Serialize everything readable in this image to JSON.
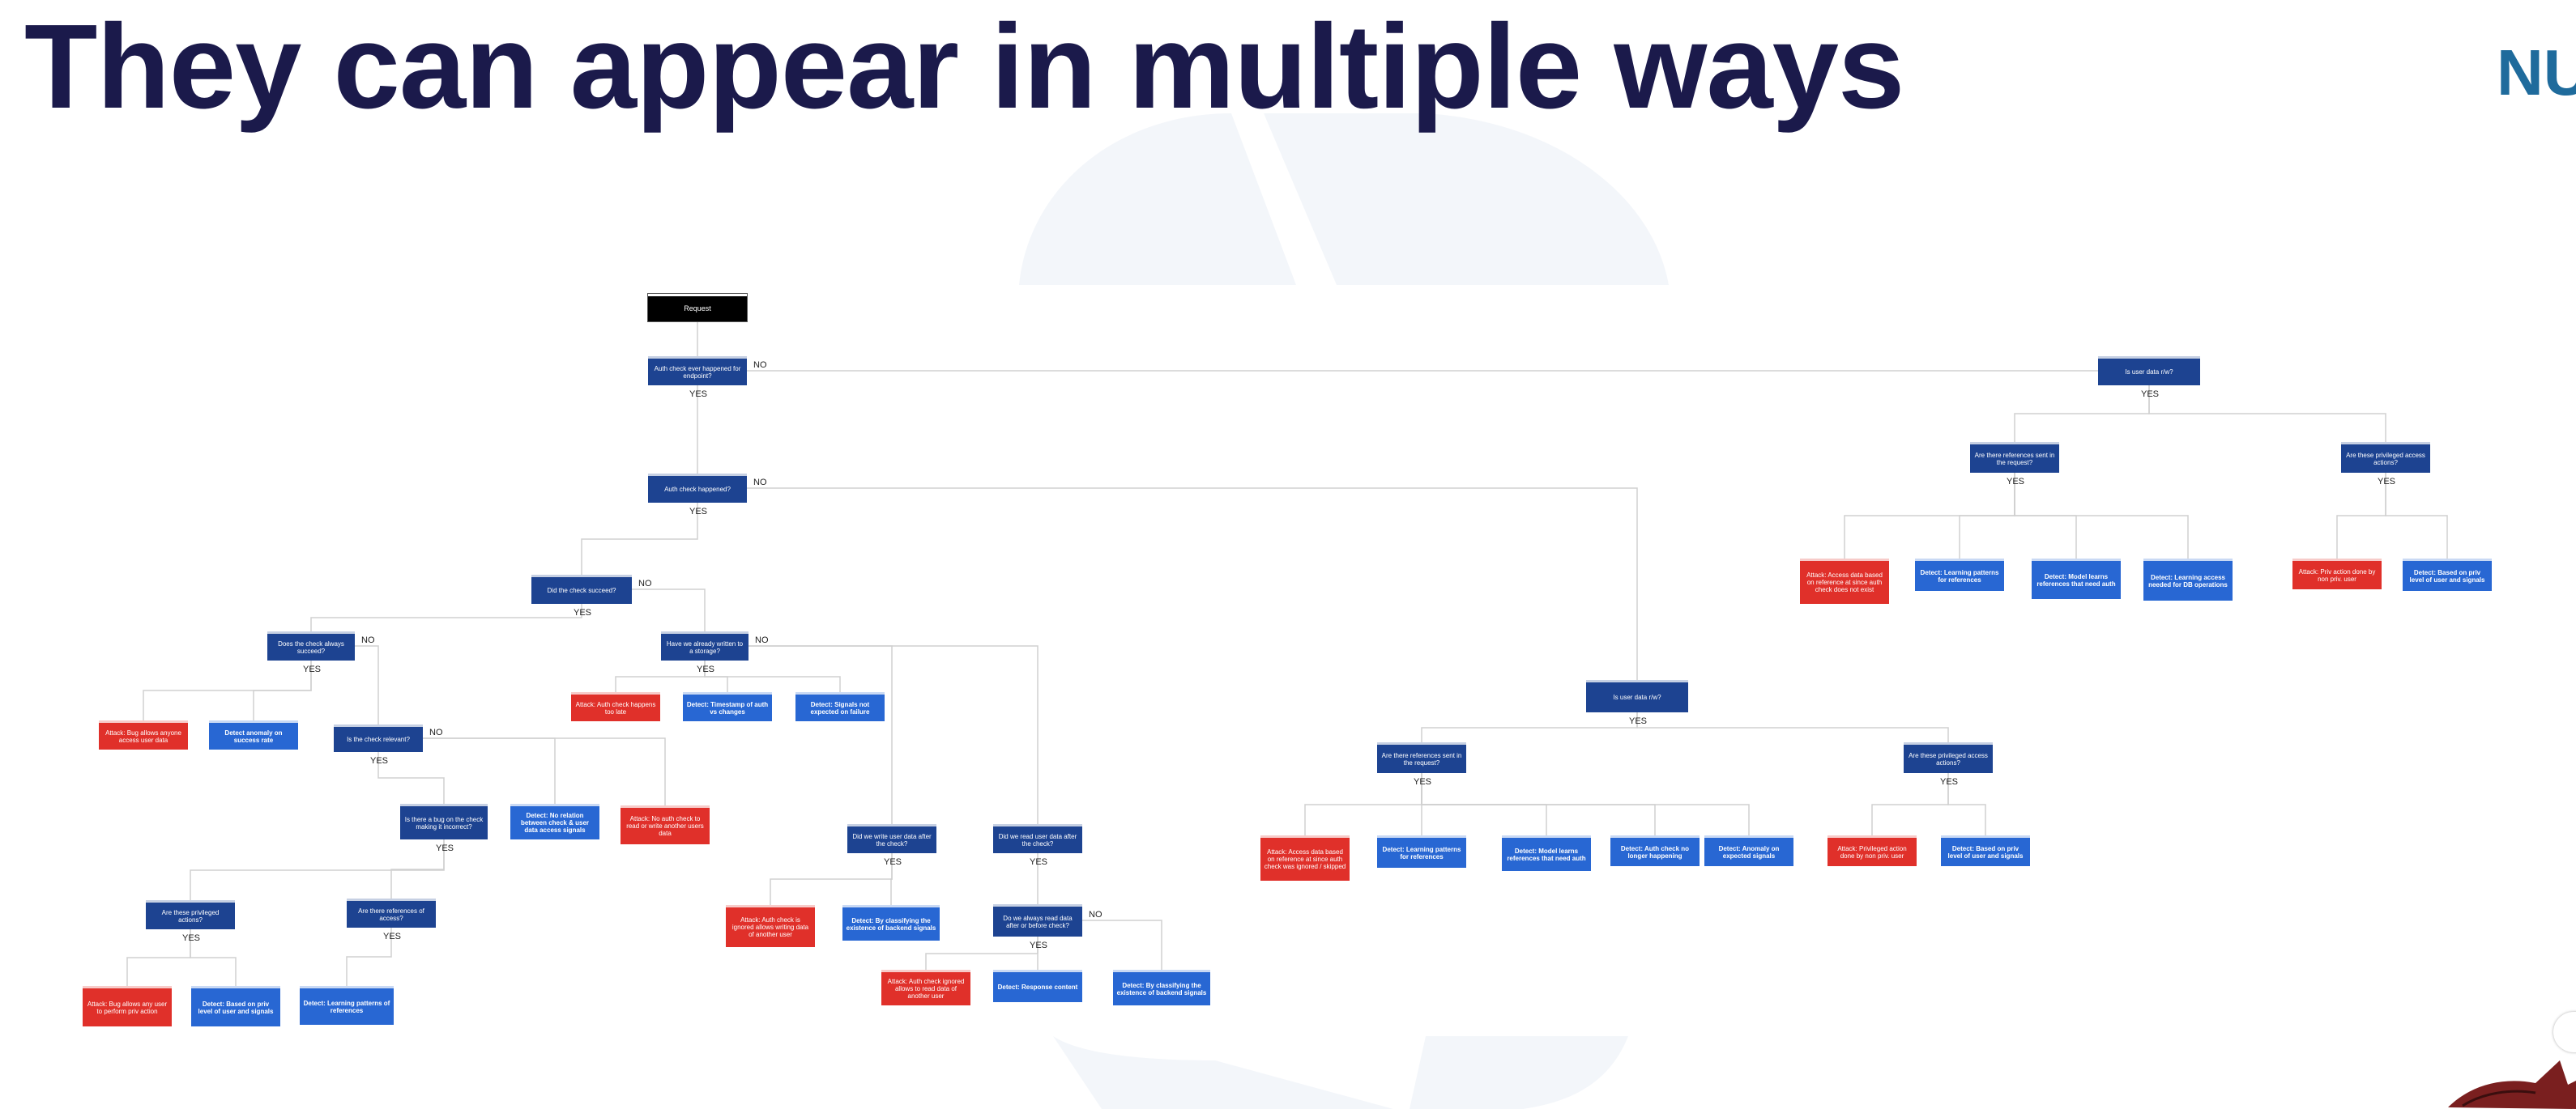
{
  "slide": {
    "title": "They can appear in multiple ways",
    "logo_text": "NU"
  },
  "colors": {
    "title": "#1b1a4b",
    "question_node": "#1d4391",
    "detect_node": "#2867d3",
    "attack_node": "#e0302a",
    "root_node": "#000000",
    "connector": "#d0d0d0",
    "logo": "#1f6b9c"
  },
  "icons": [
    "background-watermark",
    "corner-mascot-icon"
  ],
  "tree": {
    "nodes": [
      {
        "id": "root",
        "type": "root",
        "text": "Request"
      },
      {
        "id": "q1",
        "type": "question",
        "text": "Auth check ever happened for endpoint?"
      },
      {
        "id": "q2",
        "type": "question",
        "text": "Auth check happened?"
      },
      {
        "id": "q3",
        "type": "question",
        "text": "Did the check succeed?"
      },
      {
        "id": "q4",
        "type": "question",
        "text": "Does the check always succeed?"
      },
      {
        "id": "l1",
        "type": "attack",
        "text": "Attack: Bug allows anyone access user data"
      },
      {
        "id": "l2",
        "type": "detect",
        "text": "Detect anomaly on success rate"
      },
      {
        "id": "q5",
        "type": "question",
        "text": "Is the check relevant?"
      },
      {
        "id": "q6",
        "type": "question",
        "text": "Is there a bug on the check making it incorrect?"
      },
      {
        "id": "l3",
        "type": "detect",
        "text": "Detect: No relation between check & user data access signals"
      },
      {
        "id": "l4",
        "type": "attack",
        "text": "Attack: No auth check to read or write another users data"
      },
      {
        "id": "q7",
        "type": "question",
        "text": "Are these privileged actions?"
      },
      {
        "id": "q8",
        "type": "question",
        "text": "Are there references of access?"
      },
      {
        "id": "l5",
        "type": "attack",
        "text": "Attack: Bug allows any user to perform priv action"
      },
      {
        "id": "l6",
        "type": "detect",
        "text": "Detect: Based on priv level of user and signals"
      },
      {
        "id": "l7",
        "type": "detect",
        "text": "Detect: Learning patterns of references"
      },
      {
        "id": "q9",
        "type": "question",
        "text": "Have we already written to a storage?"
      },
      {
        "id": "l8",
        "type": "attack",
        "text": "Attack: Auth check happens too late"
      },
      {
        "id": "l9",
        "type": "detect",
        "text": "Detect: Timestamp of auth vs changes"
      },
      {
        "id": "l10",
        "type": "detect",
        "text": "Detect: Signals not expected on failure"
      },
      {
        "id": "q10",
        "type": "question",
        "text": "Did we write user data after the check?"
      },
      {
        "id": "q11",
        "type": "question",
        "text": "Did we read user data after the check?"
      },
      {
        "id": "l11",
        "type": "attack",
        "text": "Attack: Auth check is ignored allows writing data of another user"
      },
      {
        "id": "l12",
        "type": "detect",
        "text": "Detect: By classifying the existence of backend signals"
      },
      {
        "id": "q12",
        "type": "question",
        "text": "Do we always read data after or before check?"
      },
      {
        "id": "l13",
        "type": "attack",
        "text": "Attack: Auth check ignored allows to read data of another user"
      },
      {
        "id": "l14",
        "type": "detect",
        "text": "Detect: Response content"
      },
      {
        "id": "l15",
        "type": "detect",
        "text": "Detect: By classifying the existence of backend signals"
      },
      {
        "id": "q13",
        "type": "question",
        "text": "Is user data r/w?"
      },
      {
        "id": "q14",
        "type": "question",
        "text": "Are there references sent in the request?"
      },
      {
        "id": "q15",
        "type": "question",
        "text": "Are these privileged access actions?"
      },
      {
        "id": "l16",
        "type": "attack",
        "text": "Attack: Access data based on reference at since auth check was ignored / skipped"
      },
      {
        "id": "l17",
        "type": "detect",
        "text": "Detect: Learning patterns for references"
      },
      {
        "id": "l18",
        "type": "detect",
        "text": "Detect: Model learns references that need auth"
      },
      {
        "id": "l19",
        "type": "detect",
        "text": "Detect: Auth check no longer happening"
      },
      {
        "id": "l20",
        "type": "detect",
        "text": "Detect: Anomaly on expected signals"
      },
      {
        "id": "l21",
        "type": "attack",
        "text": "Attack: Privileged action done by non priv. user"
      },
      {
        "id": "l22",
        "type": "detect",
        "text": "Detect: Based on priv level of user and signals"
      },
      {
        "id": "q16",
        "type": "question",
        "text": "Is user data r/w?"
      },
      {
        "id": "q17",
        "type": "question",
        "text": "Are there references sent in the request?"
      },
      {
        "id": "q18",
        "type": "question",
        "text": "Are these privileged access actions?"
      },
      {
        "id": "l23",
        "type": "attack",
        "text": "Attack: Access data based on reference at since auth check does not exist"
      },
      {
        "id": "l24",
        "type": "detect",
        "text": "Detect: Learning patterns for references"
      },
      {
        "id": "l25",
        "type": "detect",
        "text": "Detect: Model learns references that need auth"
      },
      {
        "id": "l26",
        "type": "detect",
        "text": "Detect: Learning access needed for DB operations"
      },
      {
        "id": "l27",
        "type": "attack",
        "text": "Attack: Priv action done by non priv. user"
      },
      {
        "id": "l28",
        "type": "detect",
        "text": "Detect: Based on priv level of user and signals"
      }
    ],
    "edges": [
      {
        "from": "root",
        "to": "q1",
        "label": ""
      },
      {
        "from": "q1",
        "to": "q2",
        "label": "YES"
      },
      {
        "from": "q1",
        "to": "q16",
        "label": "NO"
      },
      {
        "from": "q2",
        "to": "q3",
        "label": "YES"
      },
      {
        "from": "q2",
        "to": "q13",
        "label": "NO"
      },
      {
        "from": "q3",
        "to": "q4",
        "label": "YES"
      },
      {
        "from": "q3",
        "to": "q9",
        "label": "NO"
      },
      {
        "from": "q4",
        "to": "l1",
        "label": "YES"
      },
      {
        "from": "q4",
        "to": "l2",
        "label": "YES"
      },
      {
        "from": "q4",
        "to": "q5",
        "label": "NO"
      },
      {
        "from": "q5",
        "to": "q6",
        "label": "YES"
      },
      {
        "from": "q5",
        "to": "l3",
        "label": "NO"
      },
      {
        "from": "q5",
        "to": "l4",
        "label": "NO"
      },
      {
        "from": "q6",
        "to": "q7",
        "label": "YES"
      },
      {
        "from": "q6",
        "to": "q8",
        "label": "YES"
      },
      {
        "from": "q7",
        "to": "l5",
        "label": "YES"
      },
      {
        "from": "q7",
        "to": "l6",
        "label": "YES"
      },
      {
        "from": "q8",
        "to": "l7",
        "label": "YES"
      },
      {
        "from": "q9",
        "to": "l8",
        "label": "YES"
      },
      {
        "from": "q9",
        "to": "l9",
        "label": "YES"
      },
      {
        "from": "q9",
        "to": "l10",
        "label": "YES"
      },
      {
        "from": "q9",
        "to": "q10",
        "label": "NO"
      },
      {
        "from": "q9",
        "to": "q11",
        "label": "NO"
      },
      {
        "from": "q10",
        "to": "l11",
        "label": "YES"
      },
      {
        "from": "q10",
        "to": "l12",
        "label": "YES"
      },
      {
        "from": "q11",
        "to": "q12",
        "label": "YES"
      },
      {
        "from": "q12",
        "to": "l13",
        "label": "YES"
      },
      {
        "from": "q12",
        "to": "l14",
        "label": "YES"
      },
      {
        "from": "q12",
        "to": "l15",
        "label": "NO"
      },
      {
        "from": "q13",
        "to": "q14",
        "label": "YES"
      },
      {
        "from": "q13",
        "to": "q15",
        "label": "YES"
      },
      {
        "from": "q14",
        "to": "l16",
        "label": "YES"
      },
      {
        "from": "q14",
        "to": "l17",
        "label": "YES"
      },
      {
        "from": "q14",
        "to": "l18",
        "label": "YES"
      },
      {
        "from": "q14",
        "to": "l19",
        "label": "YES"
      },
      {
        "from": "q14",
        "to": "l20",
        "label": "YES"
      },
      {
        "from": "q15",
        "to": "l21",
        "label": "YES"
      },
      {
        "from": "q15",
        "to": "l22",
        "label": "YES"
      },
      {
        "from": "q16",
        "to": "q17",
        "label": "YES"
      },
      {
        "from": "q16",
        "to": "q18",
        "label": "YES"
      },
      {
        "from": "q17",
        "to": "l23",
        "label": "YES"
      },
      {
        "from": "q17",
        "to": "l24",
        "label": "YES"
      },
      {
        "from": "q17",
        "to": "l25",
        "label": "YES"
      },
      {
        "from": "q17",
        "to": "l26",
        "label": "YES"
      },
      {
        "from": "q18",
        "to": "l27",
        "label": "YES"
      },
      {
        "from": "q18",
        "to": "l28",
        "label": "YES"
      }
    ]
  }
}
